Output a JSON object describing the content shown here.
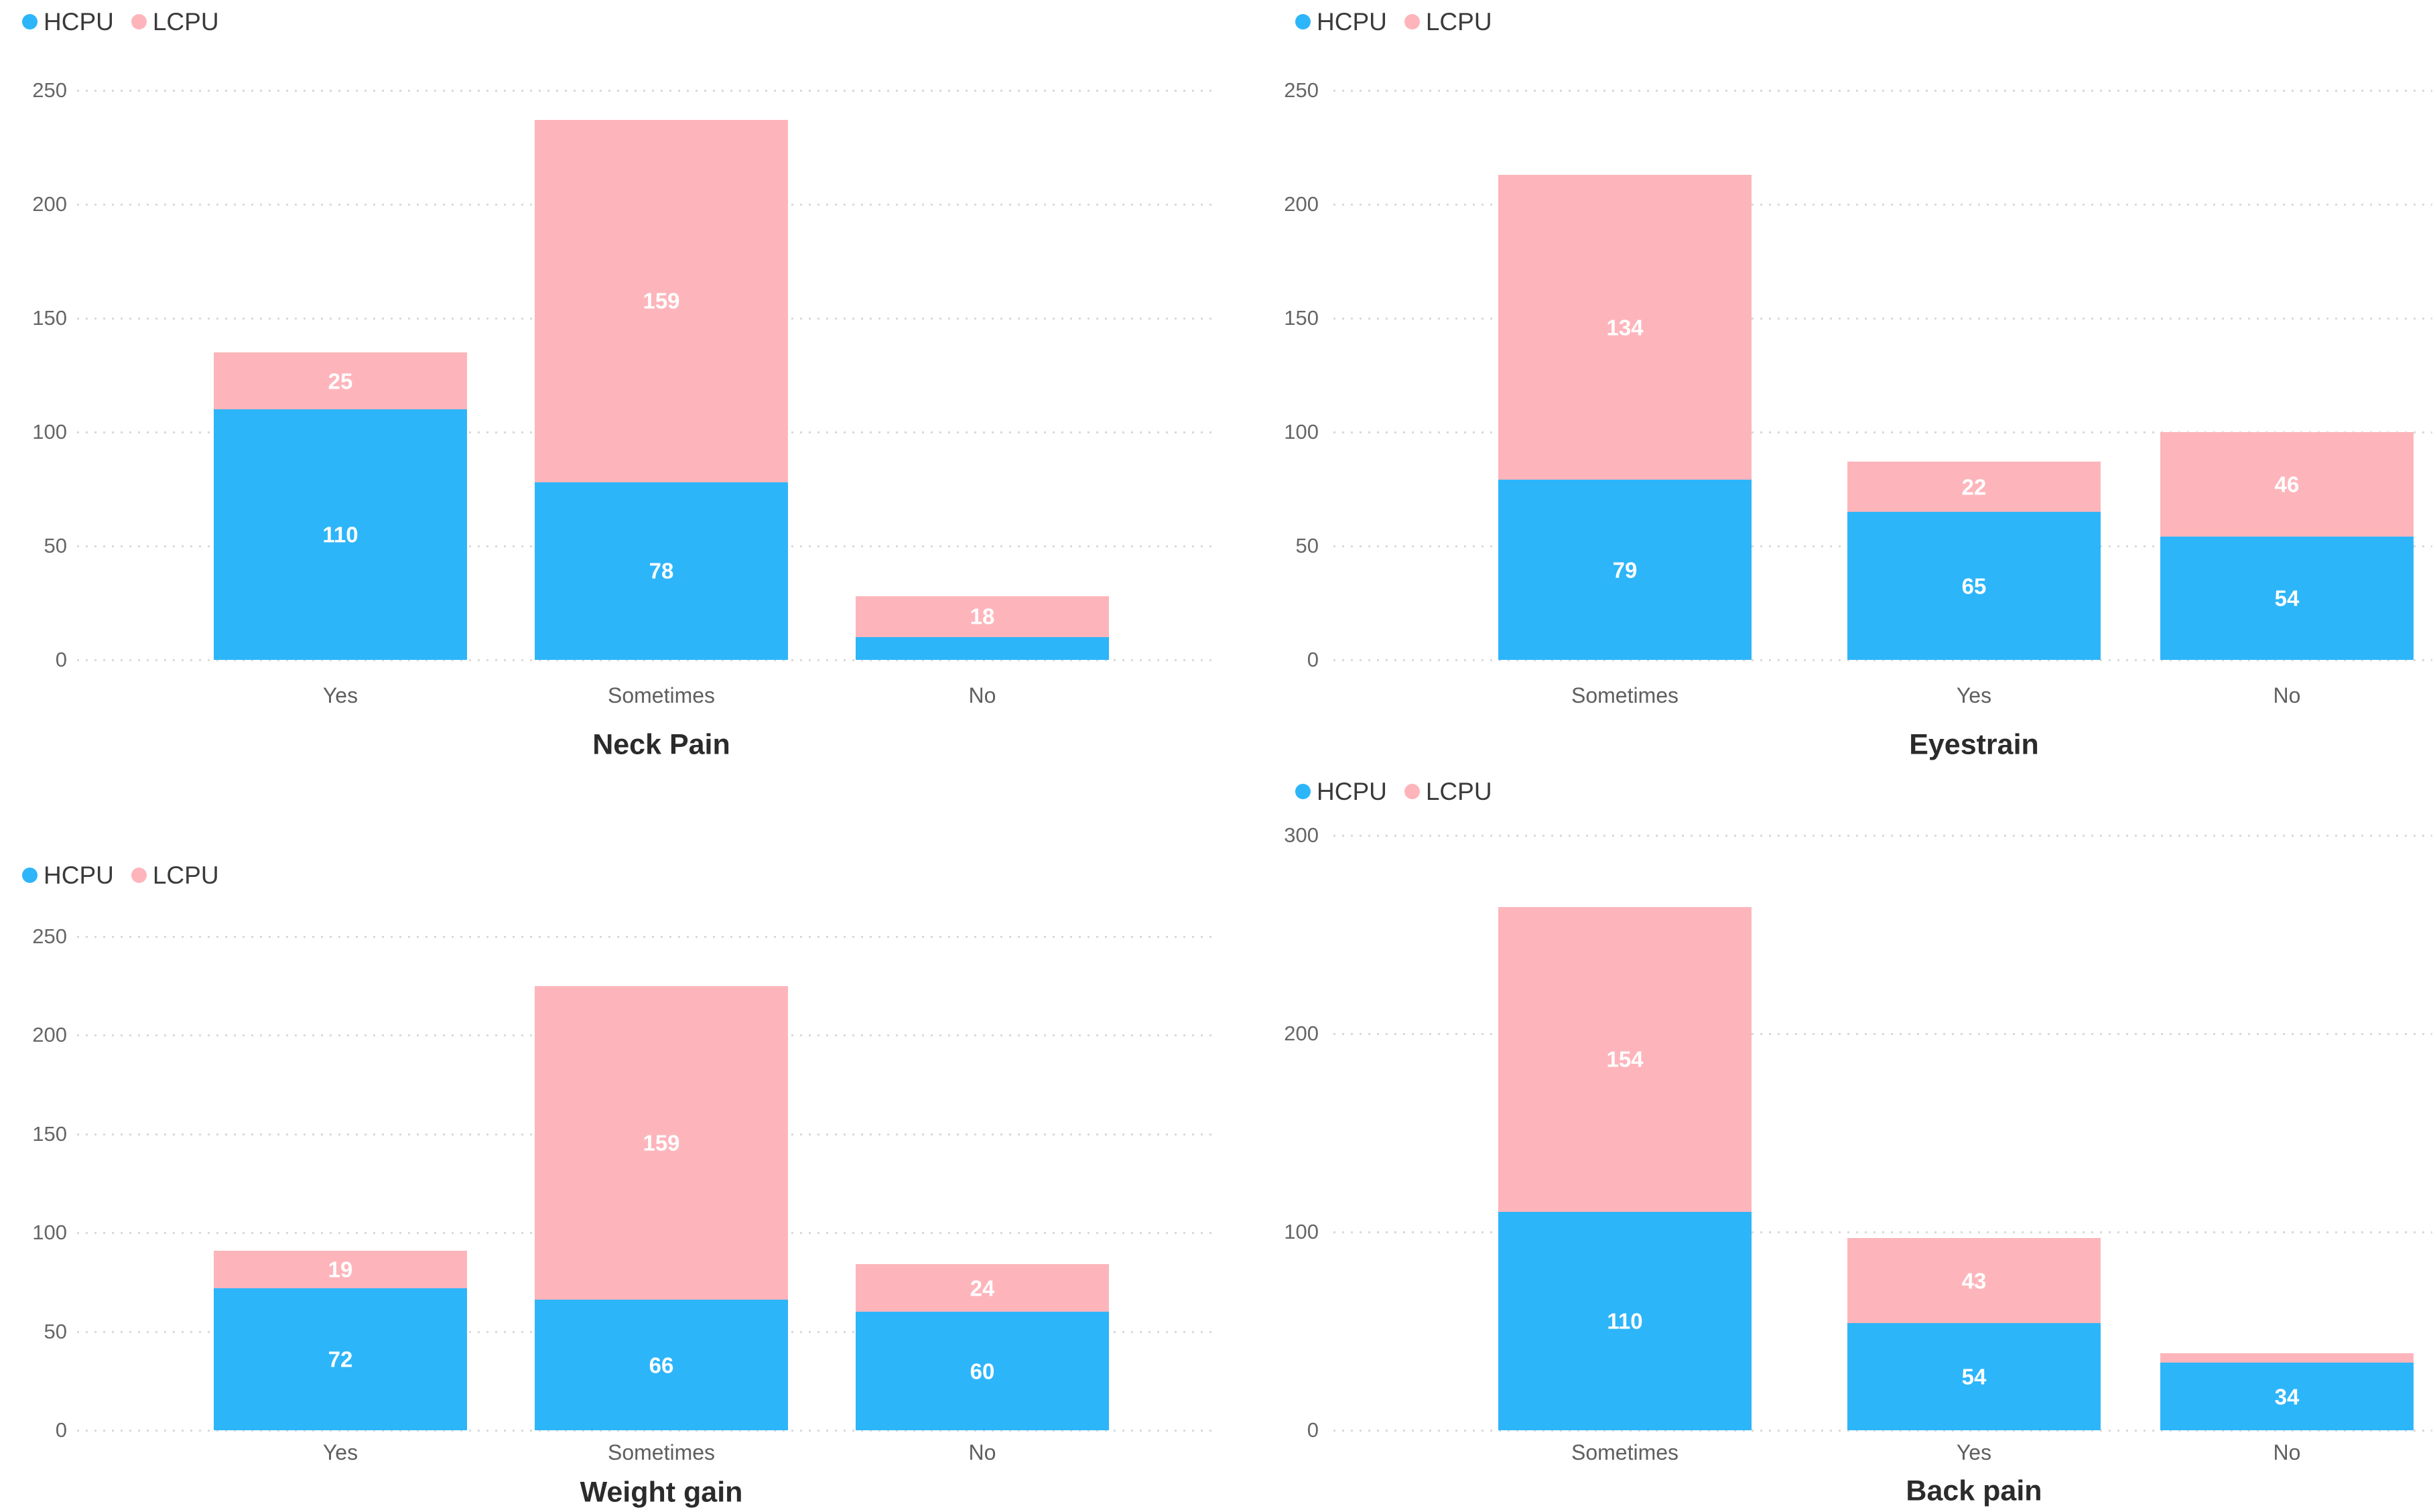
{
  "page": {
    "background": "#ffffff"
  },
  "colors": {
    "hcpu": "#2db5fa",
    "lcpu": "#fdb5bb",
    "gridline": "#d9d9d9",
    "tick_label": "#666666",
    "category_label": "#5f5f5f",
    "title": "#2b2b2b",
    "bar_label": "#ffffff",
    "legend_text": "#3a3a3a"
  },
  "legend": {
    "items": [
      {
        "label": "HCPU",
        "color_key": "hcpu"
      },
      {
        "label": "LCPU",
        "color_key": "lcpu"
      }
    ]
  },
  "chart_data": [
    {
      "id": "neck-pain",
      "type": "bar",
      "stacked": true,
      "title": "Neck Pain",
      "categories": [
        "Yes",
        "Sometimes",
        "No"
      ],
      "series": [
        {
          "name": "HCPU",
          "values": [
            110,
            78,
            10
          ],
          "labels": [
            "110",
            "78",
            ""
          ]
        },
        {
          "name": "LCPU",
          "values": [
            25,
            159,
            18
          ],
          "labels": [
            "25",
            "159",
            "18"
          ]
        }
      ],
      "ylim": [
        0,
        250
      ],
      "y_ticks": [
        250,
        200,
        150,
        100,
        50,
        0
      ],
      "grid": "dotted",
      "legend_position": "top-left"
    },
    {
      "id": "eyestrain",
      "type": "bar",
      "stacked": true,
      "title": "Eyestrain",
      "categories": [
        "Sometimes",
        "Yes",
        "No"
      ],
      "series": [
        {
          "name": "HCPU",
          "values": [
            79,
            65,
            54
          ],
          "labels": [
            "79",
            "65",
            "54"
          ]
        },
        {
          "name": "LCPU",
          "values": [
            134,
            22,
            46
          ],
          "labels": [
            "134",
            "22",
            "46"
          ]
        }
      ],
      "ylim": [
        0,
        250
      ],
      "y_ticks": [
        250,
        200,
        150,
        100,
        50,
        0
      ],
      "grid": "dotted",
      "legend_position": "top-left"
    },
    {
      "id": "weight-gain",
      "type": "bar",
      "stacked": true,
      "title": "Weight gain",
      "categories": [
        "Yes",
        "Sometimes",
        "No"
      ],
      "series": [
        {
          "name": "HCPU",
          "values": [
            72,
            66,
            60
          ],
          "labels": [
            "72",
            "66",
            "60"
          ]
        },
        {
          "name": "LCPU",
          "values": [
            19,
            159,
            24
          ],
          "labels": [
            "19",
            "159",
            "24"
          ]
        }
      ],
      "ylim": [
        0,
        250
      ],
      "y_ticks": [
        250,
        200,
        150,
        100,
        50,
        0
      ],
      "grid": "dotted",
      "legend_position": "top-left"
    },
    {
      "id": "back-pain",
      "type": "bar",
      "stacked": true,
      "title": "Back pain",
      "categories": [
        "Sometimes",
        "Yes",
        "No"
      ],
      "series": [
        {
          "name": "HCPU",
          "values": [
            110,
            54,
            34
          ],
          "labels": [
            "110",
            "54",
            "34"
          ]
        },
        {
          "name": "LCPU",
          "values": [
            154,
            43,
            5
          ],
          "labels": [
            "154",
            "43",
            ""
          ]
        }
      ],
      "ylim": [
        0,
        300
      ],
      "y_ticks": [
        300,
        200,
        100,
        0
      ],
      "grid": "dotted",
      "legend_position": "top-left"
    }
  ]
}
